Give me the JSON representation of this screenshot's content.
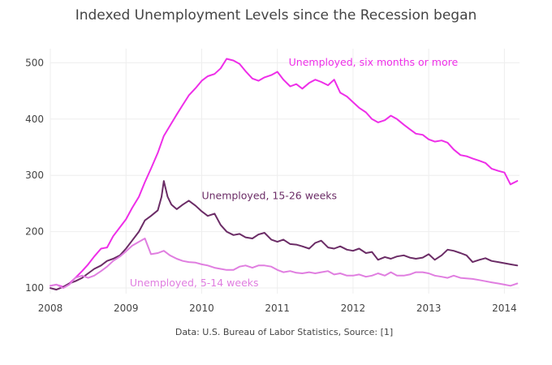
{
  "chart_data": {
    "type": "line",
    "title": "Indexed Unemployment Levels since the Recession began",
    "source_note": "Data: U.S. Bureau of Labor Statistics, Source:  [1]",
    "xlabel": "",
    "ylabel": "",
    "xlim": [
      2008.0,
      2014.2
    ],
    "ylim": [
      90,
      525
    ],
    "xticks": [
      2008,
      2009,
      2010,
      2011,
      2012,
      2013,
      2014
    ],
    "yticks": [
      100,
      200,
      300,
      400,
      500
    ],
    "grid": true,
    "legend": "none",
    "series": [
      {
        "name": "Unemployed, six months or more",
        "color": "#ee2ee8",
        "label_anchor": [
          2011.15,
          495
        ],
        "x": [
          2008.0,
          2008.08,
          2008.17,
          2008.25,
          2008.33,
          2008.42,
          2008.5,
          2008.58,
          2008.67,
          2008.75,
          2008.83,
          2008.92,
          2009.0,
          2009.08,
          2009.17,
          2009.25,
          2009.33,
          2009.42,
          2009.5,
          2009.58,
          2009.67,
          2009.75,
          2009.83,
          2009.92,
          2010.0,
          2010.08,
          2010.17,
          2010.25,
          2010.33,
          2010.42,
          2010.5,
          2010.58,
          2010.67,
          2010.75,
          2010.83,
          2010.92,
          2011.0,
          2011.08,
          2011.17,
          2011.25,
          2011.33,
          2011.42,
          2011.5,
          2011.58,
          2011.67,
          2011.75,
          2011.83,
          2011.92,
          2012.0,
          2012.08,
          2012.17,
          2012.25,
          2012.33,
          2012.42,
          2012.5,
          2012.58,
          2012.67,
          2012.75,
          2012.83,
          2012.92,
          2013.0,
          2013.08,
          2013.17,
          2013.25,
          2013.33,
          2013.42,
          2013.5,
          2013.58,
          2013.67,
          2013.75,
          2013.83,
          2013.92,
          2014.0,
          2014.08,
          2014.17
        ],
        "y": [
          104,
          106,
          102,
          108,
          118,
          130,
          142,
          156,
          170,
          172,
          192,
          208,
          222,
          242,
          262,
          288,
          312,
          340,
          370,
          388,
          408,
          425,
          442,
          455,
          468,
          476,
          480,
          490,
          507,
          504,
          498,
          485,
          472,
          468,
          474,
          478,
          484,
          470,
          458,
          462,
          454,
          464,
          470,
          466,
          460,
          470,
          447,
          440,
          430,
          420,
          412,
          400,
          394,
          398,
          406,
          400,
          390,
          382,
          374,
          372,
          364,
          360,
          362,
          358,
          346,
          336,
          334,
          330,
          326,
          322,
          312,
          308,
          305,
          284,
          290
        ]
      },
      {
        "name": "Unemployed, 15-26 weeks",
        "color": "#6b2c66",
        "label_anchor": [
          2010.0,
          258
        ],
        "x": [
          2008.0,
          2008.08,
          2008.17,
          2008.25,
          2008.33,
          2008.42,
          2008.5,
          2008.58,
          2008.67,
          2008.75,
          2008.83,
          2008.92,
          2009.0,
          2009.08,
          2009.17,
          2009.25,
          2009.33,
          2009.42,
          2009.47,
          2009.5,
          2009.55,
          2009.6,
          2009.67,
          2009.75,
          2009.83,
          2009.92,
          2010.0,
          2010.08,
          2010.17,
          2010.25,
          2010.33,
          2010.42,
          2010.5,
          2010.58,
          2010.67,
          2010.75,
          2010.83,
          2010.92,
          2011.0,
          2011.08,
          2011.17,
          2011.25,
          2011.33,
          2011.42,
          2011.5,
          2011.58,
          2011.67,
          2011.75,
          2011.83,
          2011.92,
          2012.0,
          2012.08,
          2012.17,
          2012.25,
          2012.33,
          2012.42,
          2012.5,
          2012.58,
          2012.67,
          2012.75,
          2012.83,
          2012.92,
          2013.0,
          2013.08,
          2013.17,
          2013.25,
          2013.33,
          2013.42,
          2013.5,
          2013.58,
          2013.67,
          2013.75,
          2013.83,
          2013.92,
          2014.0,
          2014.08,
          2014.17
        ],
        "y": [
          100,
          97,
          102,
          108,
          112,
          118,
          126,
          134,
          140,
          148,
          152,
          158,
          170,
          184,
          200,
          220,
          228,
          238,
          262,
          290,
          262,
          248,
          240,
          248,
          255,
          246,
          236,
          228,
          232,
          212,
          200,
          194,
          196,
          190,
          188,
          195,
          198,
          186,
          182,
          186,
          178,
          177,
          174,
          170,
          180,
          184,
          172,
          170,
          174,
          168,
          166,
          170,
          162,
          164,
          150,
          155,
          152,
          156,
          158,
          154,
          152,
          154,
          160,
          150,
          158,
          168,
          166,
          162,
          158,
          146,
          150,
          153,
          148,
          146,
          144,
          142,
          140
        ]
      },
      {
        "name": "Unemployed, 5-14 weeks",
        "color": "#e07ee0",
        "label_anchor": [
          2009.05,
          103
        ],
        "x": [
          2008.0,
          2008.08,
          2008.17,
          2008.25,
          2008.33,
          2008.42,
          2008.5,
          2008.58,
          2008.67,
          2008.75,
          2008.83,
          2008.92,
          2009.0,
          2009.08,
          2009.17,
          2009.25,
          2009.33,
          2009.42,
          2009.5,
          2009.58,
          2009.67,
          2009.75,
          2009.83,
          2009.92,
          2010.0,
          2010.08,
          2010.17,
          2010.25,
          2010.33,
          2010.42,
          2010.5,
          2010.58,
          2010.67,
          2010.75,
          2010.83,
          2010.92,
          2011.0,
          2011.08,
          2011.17,
          2011.25,
          2011.33,
          2011.42,
          2011.5,
          2011.58,
          2011.67,
          2011.75,
          2011.83,
          2011.92,
          2012.0,
          2012.08,
          2012.17,
          2012.25,
          2012.33,
          2012.42,
          2012.5,
          2012.58,
          2012.67,
          2012.75,
          2012.83,
          2012.92,
          2013.0,
          2013.08,
          2013.17,
          2013.25,
          2013.33,
          2013.42,
          2013.5,
          2013.58,
          2013.67,
          2013.75,
          2013.83,
          2013.92,
          2014.0,
          2014.08,
          2014.17
        ],
        "y": [
          104,
          106,
          100,
          106,
          118,
          122,
          118,
          122,
          130,
          138,
          148,
          156,
          165,
          175,
          182,
          188,
          160,
          162,
          166,
          158,
          152,
          148,
          146,
          145,
          142,
          140,
          136,
          134,
          132,
          132,
          138,
          140,
          136,
          140,
          140,
          138,
          132,
          128,
          130,
          127,
          126,
          128,
          126,
          128,
          130,
          124,
          126,
          122,
          122,
          124,
          120,
          122,
          126,
          122,
          128,
          122,
          122,
          124,
          128,
          128,
          126,
          122,
          120,
          118,
          122,
          118,
          117,
          116,
          114,
          112,
          110,
          108,
          106,
          104,
          108
        ]
      }
    ]
  }
}
